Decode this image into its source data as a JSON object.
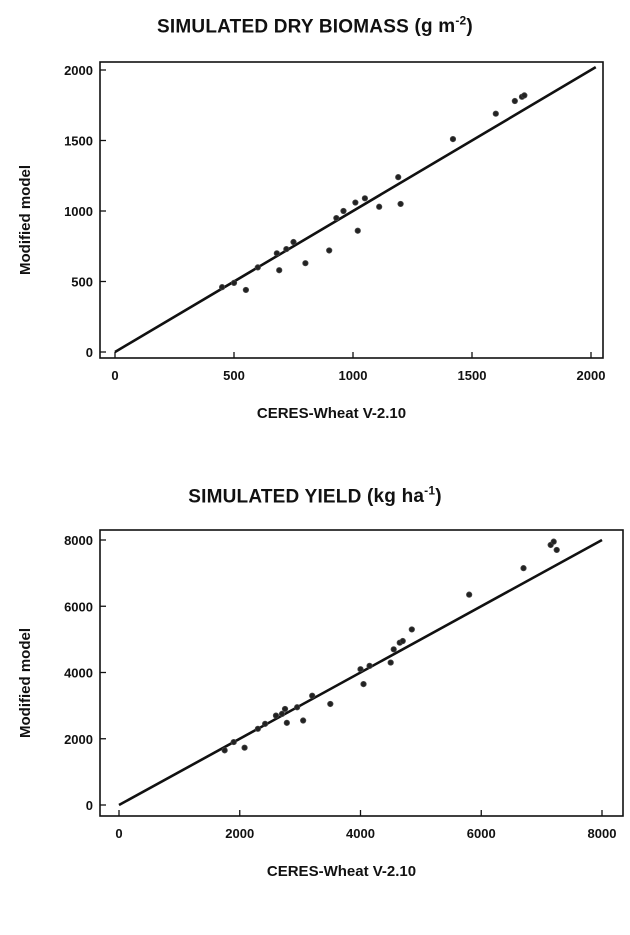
{
  "chart_data": [
    {
      "type": "scatter",
      "title": "SIMULATED DRY BIOMASS",
      "title_unit_base": "(g m",
      "title_unit_exp": "-2",
      "title_unit_end": ")",
      "xlabel": "CERES-Wheat V-2.10",
      "ylabel": "Modified model",
      "xlim": [
        0,
        2000
      ],
      "ylim": [
        0,
        2000
      ],
      "xticks": [
        0,
        500,
        1000,
        1500,
        2000
      ],
      "yticks": [
        0,
        500,
        1000,
        1500,
        2000
      ],
      "reference_line": [
        [
          0,
          0
        ],
        [
          2020,
          2020
        ]
      ],
      "points": [
        [
          450,
          460
        ],
        [
          500,
          490
        ],
        [
          550,
          440
        ],
        [
          600,
          600
        ],
        [
          680,
          700
        ],
        [
          690,
          580
        ],
        [
          720,
          730
        ],
        [
          750,
          780
        ],
        [
          800,
          630
        ],
        [
          900,
          720
        ],
        [
          930,
          950
        ],
        [
          960,
          1000
        ],
        [
          1010,
          1060
        ],
        [
          1020,
          860
        ],
        [
          1050,
          1090
        ],
        [
          1110,
          1030
        ],
        [
          1190,
          1240
        ],
        [
          1200,
          1050
        ],
        [
          1420,
          1510
        ],
        [
          1600,
          1690
        ],
        [
          1680,
          1780
        ],
        [
          1710,
          1810
        ],
        [
          1720,
          1820
        ]
      ]
    },
    {
      "type": "scatter",
      "title": "SIMULATED YIELD",
      "title_unit_base": "(kg ha",
      "title_unit_exp": "-1",
      "title_unit_end": ")",
      "xlabel": "CERES-Wheat V-2.10",
      "ylabel": "Modified model",
      "xlim": [
        0,
        8000
      ],
      "ylim": [
        0,
        8000
      ],
      "xticks": [
        0,
        2000,
        4000,
        6000,
        8000
      ],
      "yticks": [
        0,
        2000,
        4000,
        6000,
        8000
      ],
      "reference_line": [
        [
          0,
          0
        ],
        [
          8000,
          8000
        ]
      ],
      "points": [
        [
          1750,
          1650
        ],
        [
          1900,
          1900
        ],
        [
          2080,
          1730
        ],
        [
          2300,
          2300
        ],
        [
          2420,
          2450
        ],
        [
          2600,
          2700
        ],
        [
          2700,
          2750
        ],
        [
          2750,
          2900
        ],
        [
          2780,
          2480
        ],
        [
          2950,
          2950
        ],
        [
          3050,
          2550
        ],
        [
          3200,
          3300
        ],
        [
          3500,
          3050
        ],
        [
          4000,
          4100
        ],
        [
          4050,
          3650
        ],
        [
          4150,
          4200
        ],
        [
          4500,
          4300
        ],
        [
          4550,
          4700
        ],
        [
          4650,
          4900
        ],
        [
          4700,
          4950
        ],
        [
          4850,
          5300
        ],
        [
          5800,
          6350
        ],
        [
          6700,
          7150
        ],
        [
          7150,
          7850
        ],
        [
          7200,
          7950
        ],
        [
          7250,
          7700
        ]
      ]
    }
  ]
}
